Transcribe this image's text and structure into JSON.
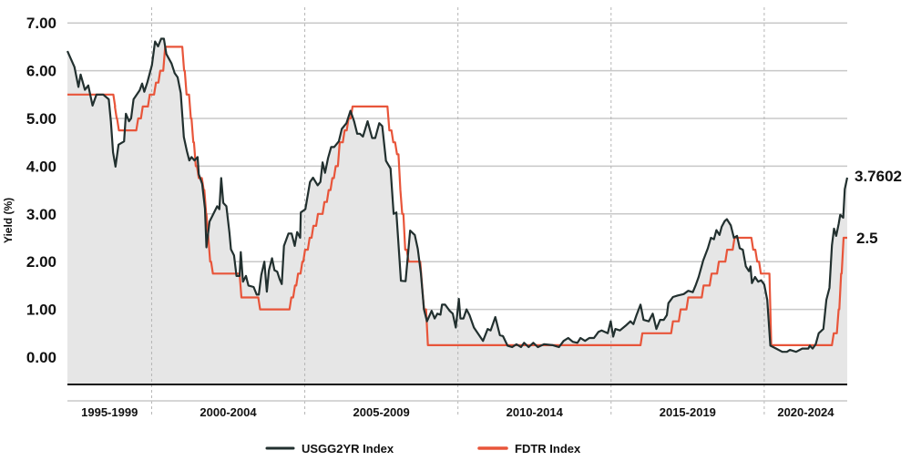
{
  "chart_data": {
    "type": "line",
    "title": "",
    "xlabel": "",
    "ylabel": "Yield (%)",
    "ylim": [
      -0.57,
      7
    ],
    "xlim": [
      1997.25,
      2022.71
    ],
    "yticks": [
      "7.00",
      "6.00",
      "5.00",
      "4.00",
      "3.00",
      "2.00",
      "1.00",
      "0.00"
    ],
    "ytick_values": [
      7,
      6,
      5,
      4,
      3,
      2,
      1,
      0
    ],
    "grid": true,
    "legend_position": "bottom",
    "x_periods": [
      {
        "label": "1995-1999",
        "start": 1995,
        "end": 2000
      },
      {
        "label": "2000-2004",
        "start": 2000,
        "end": 2005
      },
      {
        "label": "2005-2009",
        "start": 2005,
        "end": 2010
      },
      {
        "label": "2010-2014",
        "start": 2010,
        "end": 2015
      },
      {
        "label": "2015-2019",
        "start": 2015,
        "end": 2020
      },
      {
        "label": "2020-2024",
        "start": 2020,
        "end": 2025
      }
    ],
    "series": [
      {
        "name": "USGG2YR Index",
        "color": "#22302f",
        "last_label": "3.7602",
        "points": [
          [
            1997.25,
            6.41
          ],
          [
            1997.48,
            6.08
          ],
          [
            1997.61,
            5.66
          ],
          [
            1997.68,
            5.92
          ],
          [
            1997.82,
            5.6
          ],
          [
            1997.93,
            5.69
          ],
          [
            1998.07,
            5.27
          ],
          [
            1998.2,
            5.5
          ],
          [
            1998.42,
            5.5
          ],
          [
            1998.6,
            5.4
          ],
          [
            1998.67,
            4.94
          ],
          [
            1998.74,
            4.29
          ],
          [
            1998.82,
            3.99
          ],
          [
            1998.92,
            4.45
          ],
          [
            1999.1,
            4.52
          ],
          [
            1999.16,
            5.1
          ],
          [
            1999.26,
            4.94
          ],
          [
            1999.33,
            5.0
          ],
          [
            1999.41,
            5.4
          ],
          [
            1999.61,
            5.59
          ],
          [
            1999.69,
            5.73
          ],
          [
            1999.76,
            5.56
          ],
          [
            1999.86,
            5.76
          ],
          [
            2000.01,
            6.12
          ],
          [
            2000.11,
            6.61
          ],
          [
            2000.21,
            6.51
          ],
          [
            2000.31,
            6.67
          ],
          [
            2000.4,
            6.67
          ],
          [
            2000.48,
            6.35
          ],
          [
            2000.65,
            6.15
          ],
          [
            2000.75,
            5.95
          ],
          [
            2000.85,
            5.86
          ],
          [
            2000.95,
            5.53
          ],
          [
            2001.05,
            4.61
          ],
          [
            2001.15,
            4.32
          ],
          [
            2001.23,
            4.12
          ],
          [
            2001.3,
            4.19
          ],
          [
            2001.4,
            4.12
          ],
          [
            2001.5,
            4.19
          ],
          [
            2001.54,
            3.83
          ],
          [
            2001.65,
            3.63
          ],
          [
            2001.74,
            3.11
          ],
          [
            2001.79,
            2.3
          ],
          [
            2001.89,
            2.84
          ],
          [
            2002.04,
            3.03
          ],
          [
            2002.14,
            3.16
          ],
          [
            2002.21,
            3.1
          ],
          [
            2002.27,
            3.75
          ],
          [
            2002.34,
            3.23
          ],
          [
            2002.44,
            3.16
          ],
          [
            2002.54,
            2.6
          ],
          [
            2002.59,
            2.26
          ],
          [
            2002.69,
            2.13
          ],
          [
            2002.77,
            1.7
          ],
          [
            2002.87,
            1.7
          ],
          [
            2002.91,
            2.2
          ],
          [
            2002.98,
            1.58
          ],
          [
            2003.08,
            1.7
          ],
          [
            2003.16,
            1.5
          ],
          [
            2003.33,
            1.47
          ],
          [
            2003.43,
            1.31
          ],
          [
            2003.5,
            1.31
          ],
          [
            2003.58,
            1.72
          ],
          [
            2003.68,
            2.0
          ],
          [
            2003.76,
            1.37
          ],
          [
            2003.83,
            1.82
          ],
          [
            2003.93,
            2.07
          ],
          [
            2004.01,
            1.82
          ],
          [
            2004.1,
            1.79
          ],
          [
            2004.18,
            1.63
          ],
          [
            2004.25,
            1.53
          ],
          [
            2004.32,
            2.33
          ],
          [
            2004.47,
            2.59
          ],
          [
            2004.57,
            2.59
          ],
          [
            2004.67,
            2.33
          ],
          [
            2004.75,
            2.62
          ],
          [
            2004.85,
            2.5
          ],
          [
            2004.87,
            3.03
          ],
          [
            2005.02,
            3.1
          ],
          [
            2005.17,
            3.67
          ],
          [
            2005.27,
            3.76
          ],
          [
            2005.42,
            3.6
          ],
          [
            2005.51,
            3.67
          ],
          [
            2005.58,
            4.08
          ],
          [
            2005.66,
            3.86
          ],
          [
            2005.76,
            4.17
          ],
          [
            2005.86,
            4.4
          ],
          [
            2005.96,
            4.4
          ],
          [
            2006.11,
            4.52
          ],
          [
            2006.21,
            4.78
          ],
          [
            2006.36,
            4.9
          ],
          [
            2006.49,
            5.16
          ],
          [
            2006.61,
            4.94
          ],
          [
            2006.71,
            4.68
          ],
          [
            2006.8,
            4.68
          ],
          [
            2006.9,
            4.62
          ],
          [
            2007.05,
            4.94
          ],
          [
            2007.2,
            4.59
          ],
          [
            2007.3,
            4.59
          ],
          [
            2007.43,
            4.9
          ],
          [
            2007.53,
            4.84
          ],
          [
            2007.65,
            4.11
          ],
          [
            2007.8,
            3.95
          ],
          [
            2007.9,
            3.0
          ],
          [
            2007.99,
            3.03
          ],
          [
            2008.14,
            1.6
          ],
          [
            2008.29,
            1.59
          ],
          [
            2008.44,
            2.65
          ],
          [
            2008.59,
            2.56
          ],
          [
            2008.69,
            2.27
          ],
          [
            2008.79,
            1.76
          ],
          [
            2008.89,
            1.0
          ],
          [
            2008.99,
            0.75
          ],
          [
            2009.14,
            0.97
          ],
          [
            2009.24,
            0.81
          ],
          [
            2009.33,
            0.91
          ],
          [
            2009.43,
            0.89
          ],
          [
            2009.48,
            1.1
          ],
          [
            2009.58,
            1.1
          ],
          [
            2009.73,
            0.97
          ],
          [
            2009.83,
            0.91
          ],
          [
            2009.93,
            0.62
          ],
          [
            2010.03,
            1.22
          ],
          [
            2010.08,
            0.81
          ],
          [
            2010.18,
            0.81
          ],
          [
            2010.28,
            1.0
          ],
          [
            2010.38,
            0.88
          ],
          [
            2010.52,
            0.62
          ],
          [
            2010.82,
            0.34
          ],
          [
            2010.97,
            0.59
          ],
          [
            2011.07,
            0.56
          ],
          [
            2011.22,
            0.84
          ],
          [
            2011.37,
            0.46
          ],
          [
            2011.47,
            0.44
          ],
          [
            2011.62,
            0.24
          ],
          [
            2011.77,
            0.21
          ],
          [
            2011.91,
            0.27
          ],
          [
            2012.06,
            0.21
          ],
          [
            2012.16,
            0.3
          ],
          [
            2012.31,
            0.21
          ],
          [
            2012.46,
            0.3
          ],
          [
            2012.61,
            0.21
          ],
          [
            2012.81,
            0.27
          ],
          [
            2013.1,
            0.25
          ],
          [
            2013.3,
            0.21
          ],
          [
            2013.45,
            0.34
          ],
          [
            2013.6,
            0.4
          ],
          [
            2013.75,
            0.32
          ],
          [
            2013.9,
            0.3
          ],
          [
            2014.0,
            0.4
          ],
          [
            2014.15,
            0.34
          ],
          [
            2014.29,
            0.4
          ],
          [
            2014.44,
            0.4
          ],
          [
            2014.59,
            0.53
          ],
          [
            2014.69,
            0.56
          ],
          [
            2014.89,
            0.5
          ],
          [
            2014.99,
            0.75
          ],
          [
            2015.07,
            0.43
          ],
          [
            2015.14,
            0.59
          ],
          [
            2015.29,
            0.56
          ],
          [
            2015.48,
            0.66
          ],
          [
            2015.63,
            0.75
          ],
          [
            2015.73,
            0.69
          ],
          [
            2015.83,
            0.88
          ],
          [
            2015.96,
            1.1
          ],
          [
            2016.06,
            0.78
          ],
          [
            2016.23,
            0.75
          ],
          [
            2016.36,
            0.91
          ],
          [
            2016.48,
            0.59
          ],
          [
            2016.6,
            0.78
          ],
          [
            2016.72,
            0.78
          ],
          [
            2016.82,
            0.88
          ],
          [
            2016.87,
            1.13
          ],
          [
            2017.02,
            1.26
          ],
          [
            2017.17,
            1.29
          ],
          [
            2017.37,
            1.32
          ],
          [
            2017.52,
            1.39
          ],
          [
            2017.67,
            1.36
          ],
          [
            2017.77,
            1.52
          ],
          [
            2017.86,
            1.68
          ],
          [
            2018.01,
            2.03
          ],
          [
            2018.16,
            2.28
          ],
          [
            2018.26,
            2.5
          ],
          [
            2018.36,
            2.47
          ],
          [
            2018.44,
            2.66
          ],
          [
            2018.54,
            2.56
          ],
          [
            2018.61,
            2.73
          ],
          [
            2018.71,
            2.85
          ],
          [
            2018.78,
            2.89
          ],
          [
            2018.91,
            2.76
          ],
          [
            2019.01,
            2.5
          ],
          [
            2019.11,
            2.54
          ],
          [
            2019.2,
            2.28
          ],
          [
            2019.3,
            2.25
          ],
          [
            2019.4,
            1.9
          ],
          [
            2019.5,
            1.8
          ],
          [
            2019.55,
            1.9
          ],
          [
            2019.6,
            1.55
          ],
          [
            2019.7,
            1.68
          ],
          [
            2019.8,
            1.58
          ],
          [
            2019.9,
            1.61
          ],
          [
            2020.0,
            1.52
          ],
          [
            2020.1,
            1.2
          ],
          [
            2020.2,
            0.24
          ],
          [
            2020.39,
            0.18
          ],
          [
            2020.59,
            0.11
          ],
          [
            2020.74,
            0.11
          ],
          [
            2020.84,
            0.15
          ],
          [
            2021.04,
            0.11
          ],
          [
            2021.24,
            0.18
          ],
          [
            2021.44,
            0.18
          ],
          [
            2021.49,
            0.24
          ],
          [
            2021.58,
            0.18
          ],
          [
            2021.68,
            0.27
          ],
          [
            2021.78,
            0.5
          ],
          [
            2021.93,
            0.59
          ],
          [
            2022.03,
            1.2
          ],
          [
            2022.13,
            1.45
          ],
          [
            2022.21,
            2.34
          ],
          [
            2022.28,
            2.69
          ],
          [
            2022.35,
            2.54
          ],
          [
            2022.43,
            2.79
          ],
          [
            2022.48,
            2.98
          ],
          [
            2022.58,
            2.92
          ],
          [
            2022.63,
            3.52
          ],
          [
            2022.71,
            3.76
          ]
        ]
      },
      {
        "name": "FDTR Index",
        "color": "#e8553a",
        "last_label": "2.5",
        "start_value": 5.5,
        "changes": [
          [
            1998.75,
            5.25
          ],
          [
            1998.8,
            5.0
          ],
          [
            1998.87,
            4.75
          ],
          [
            1999.5,
            5.0
          ],
          [
            1999.65,
            5.25
          ],
          [
            1999.88,
            5.5
          ],
          [
            2000.08,
            5.75
          ],
          [
            2000.22,
            6.0
          ],
          [
            2000.38,
            6.5
          ],
          [
            2001.0,
            6.0
          ],
          [
            2001.08,
            5.5
          ],
          [
            2001.22,
            5.0
          ],
          [
            2001.3,
            4.5
          ],
          [
            2001.38,
            4.0
          ],
          [
            2001.48,
            3.75
          ],
          [
            2001.64,
            3.5
          ],
          [
            2001.72,
            3.0
          ],
          [
            2001.79,
            2.5
          ],
          [
            2001.85,
            2.0
          ],
          [
            2001.94,
            1.75
          ],
          [
            2002.87,
            1.25
          ],
          [
            2003.48,
            1.0
          ],
          [
            2004.5,
            1.25
          ],
          [
            2004.62,
            1.5
          ],
          [
            2004.72,
            1.75
          ],
          [
            2004.86,
            2.0
          ],
          [
            2004.95,
            2.25
          ],
          [
            2005.1,
            2.5
          ],
          [
            2005.22,
            2.75
          ],
          [
            2005.37,
            3.0
          ],
          [
            2005.58,
            3.25
          ],
          [
            2005.72,
            3.5
          ],
          [
            2005.84,
            3.75
          ],
          [
            2005.95,
            4.0
          ],
          [
            2006.08,
            4.5
          ],
          [
            2006.24,
            4.75
          ],
          [
            2006.37,
            5.0
          ],
          [
            2006.5,
            5.25
          ],
          [
            2007.7,
            4.75
          ],
          [
            2007.83,
            4.5
          ],
          [
            2007.95,
            4.25
          ],
          [
            2008.06,
            3.5
          ],
          [
            2008.12,
            3.0
          ],
          [
            2008.22,
            2.25
          ],
          [
            2008.33,
            2.0
          ],
          [
            2008.77,
            1.5
          ],
          [
            2008.83,
            1.0
          ],
          [
            2008.96,
            0.25
          ],
          [
            2015.96,
            0.5
          ],
          [
            2016.96,
            0.75
          ],
          [
            2017.21,
            1.0
          ],
          [
            2017.46,
            1.25
          ],
          [
            2017.96,
            1.5
          ],
          [
            2018.22,
            1.75
          ],
          [
            2018.46,
            2.0
          ],
          [
            2018.73,
            2.25
          ],
          [
            2018.97,
            2.5
          ],
          [
            2019.58,
            2.25
          ],
          [
            2019.71,
            2.0
          ],
          [
            2019.83,
            1.75
          ],
          [
            2020.17,
            0.25
          ],
          [
            2022.21,
            0.5
          ],
          [
            2022.37,
            1.0
          ],
          [
            2022.45,
            1.75
          ],
          [
            2022.53,
            2.5
          ]
        ],
        "end": 2022.71
      }
    ]
  }
}
